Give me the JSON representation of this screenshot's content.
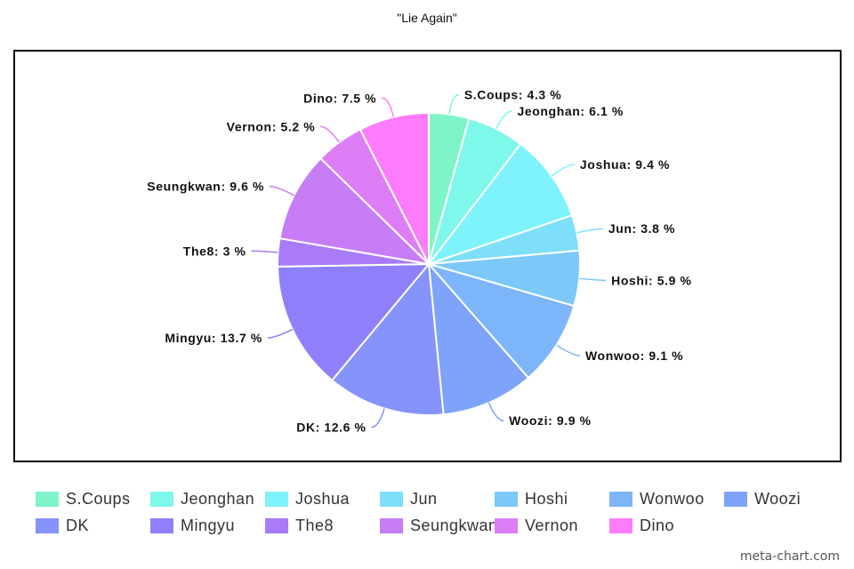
{
  "chart_data": {
    "type": "pie",
    "title": "\"Lie Again\"",
    "unit": "%",
    "labels": [
      "S.Coups",
      "Jeonghan",
      "Joshua",
      "Jun",
      "Hoshi",
      "Wonwoo",
      "Woozi",
      "DK",
      "Mingyu",
      "The8",
      "Seungkwan",
      "Vernon",
      "Dino"
    ],
    "values": [
      4.3,
      6.1,
      9.4,
      3.8,
      5.9,
      9.1,
      9.9,
      12.6,
      13.7,
      3,
      9.6,
      5.2,
      7.5
    ],
    "slice_labels": [
      "S.Coups: 4.3 %",
      "Jeonghan: 6.1 %",
      "Joshua: 9.4 %",
      "Jun: 3.8 %",
      "Hoshi: 5.9 %",
      "Wonwoo: 9.1 %",
      "Woozi: 9.9 %",
      "DK: 12.6 %",
      "Mingyu: 13.7 %",
      "The8: 3 %",
      "Seungkwan: 9.6 %",
      "Vernon: 5.2 %",
      "Dino: 7.5 %"
    ],
    "colors": [
      "#7ef5c8",
      "#7ef8ea",
      "#7ef3fb",
      "#7ddff9",
      "#7cc8f8",
      "#7db5fa",
      "#7da3fb",
      "#8593fa",
      "#8e80fb",
      "#a87bf8",
      "#c77df6",
      "#de7ef6",
      "#fd7cfb"
    ],
    "legend_position": "bottom"
  },
  "credit": "meta-chart.com"
}
